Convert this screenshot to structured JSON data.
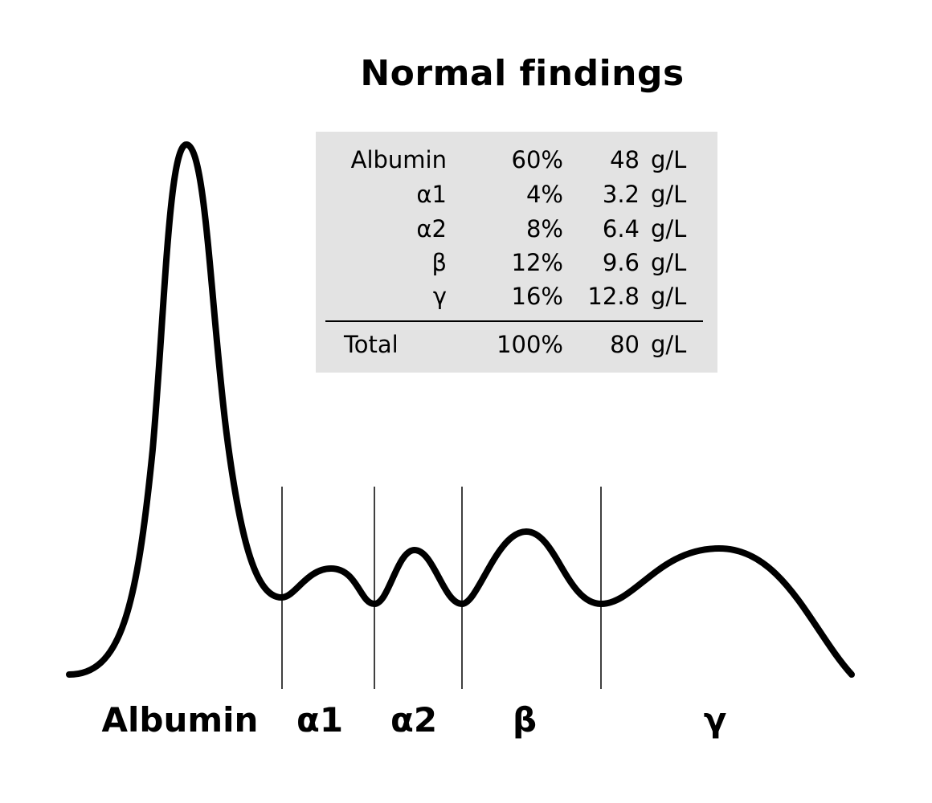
{
  "title": "Normal findings",
  "table": {
    "rows": [
      {
        "name": "Albumin",
        "percent": "60%",
        "value": "48",
        "unit": "g/L"
      },
      {
        "name": "α1",
        "percent": "4%",
        "value": "3.2",
        "unit": "g/L"
      },
      {
        "name": "α2",
        "percent": "8%",
        "value": "6.4",
        "unit": "g/L"
      },
      {
        "name": "β",
        "percent": "12%",
        "value": "9.6",
        "unit": "g/L"
      },
      {
        "name": "γ",
        "percent": "16%",
        "value": "12.8",
        "unit": "g/L"
      }
    ],
    "total": {
      "name": "Total",
      "percent": "100%",
      "value": "80",
      "unit": "g/L"
    }
  },
  "fractions": [
    "Albumin",
    "α1",
    "α2",
    "β",
    "γ"
  ]
}
